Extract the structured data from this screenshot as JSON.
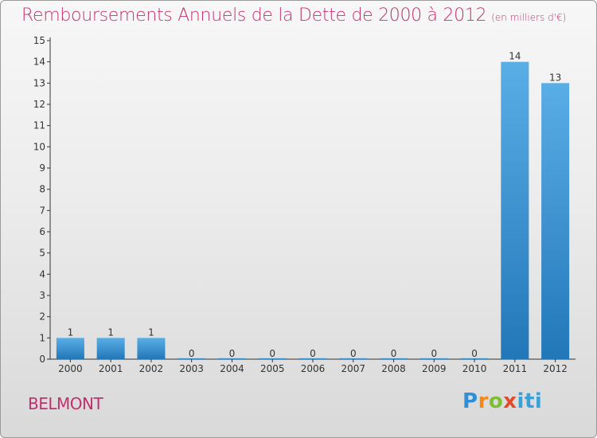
{
  "header": {
    "title": "Remboursements Annuels de la Dette de 2000 à 2012",
    "unit": "(en milliers d'€)"
  },
  "footer": {
    "city": "BELMONT",
    "logo_parts": [
      "P",
      "r",
      "o",
      "x",
      "iti"
    ]
  },
  "chart_data": {
    "type": "bar",
    "title": "Remboursements Annuels de la Dette de 2000 à 2012",
    "subtitle": "(en milliers d'€)",
    "categories": [
      "2000",
      "2001",
      "2002",
      "2003",
      "2004",
      "2005",
      "2006",
      "2007",
      "2008",
      "2009",
      "2010",
      "2011",
      "2012"
    ],
    "values": [
      1,
      1,
      1,
      0,
      0,
      0,
      0,
      0,
      0,
      0,
      0,
      14,
      13
    ],
    "ylim": [
      0,
      15
    ],
    "yticks": [
      0,
      1,
      2,
      3,
      4,
      5,
      6,
      7,
      8,
      9,
      10,
      11,
      12,
      13,
      14,
      15
    ],
    "xlabel": "",
    "ylabel": "",
    "grid": false,
    "legend": "none",
    "colors": {
      "bar_top": "#5aaee6",
      "bar_bottom": "#2277b8",
      "axis": "#333333"
    }
  }
}
